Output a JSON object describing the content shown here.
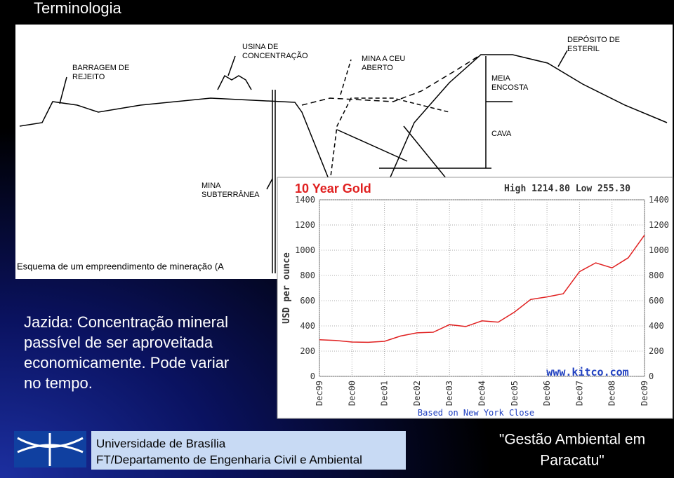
{
  "title": "Terminologia",
  "diagram": {
    "labels": [
      [
        "BARRAGEM DE",
        "REJEITO"
      ],
      [
        "USINA DE",
        "CONCENTRAÇÃO"
      ],
      [
        "MINA A CEU",
        "ABERTO"
      ],
      [
        "DEPÓSITO DE",
        "ESTERIL"
      ],
      [
        "MEIA",
        "ENCOSTA"
      ],
      [
        "CAVA"
      ],
      [
        "MINA",
        "SUBTERRÂNEA"
      ]
    ],
    "caption": "Esquema de um empreendimento de mineração (A"
  },
  "body": [
    "Jazida: Concentração mineral",
    "passível de ser aproveitada",
    "economicamente. Pode variar",
    "no tempo."
  ],
  "chart_data": {
    "type": "line",
    "title": "10 Year Gold",
    "subtitle": "High 1214.80 Low 255.30",
    "y_label": "USD per ounce",
    "x_label": "Based on New York Close",
    "source": "www.kitco.com",
    "categories": [
      "Dec99",
      null,
      "Dec00",
      null,
      "Dec01",
      null,
      "Dec02",
      null,
      "Dec03",
      null,
      "Dec04",
      null,
      "Dec05",
      null,
      "Dec06",
      null,
      "Dec07",
      null,
      "Dec08",
      null,
      "Dec09"
    ],
    "values": [
      290,
      285,
      272,
      270,
      278,
      320,
      345,
      350,
      410,
      395,
      440,
      430,
      510,
      610,
      630,
      655,
      830,
      900,
      860,
      940,
      1120
    ],
    "color": "#e02020",
    "ylim": [
      0,
      1400
    ],
    "yticks": [
      0,
      200,
      400,
      600,
      800,
      1000,
      1200,
      1400
    ],
    "grid": true
  },
  "footer": {
    "institution": "Universidade de Brasília",
    "department": "FT/Departamento de Engenharia Civil e Ambiental",
    "project": [
      "\"Gestão Ambiental em",
      "Paracatu\""
    ]
  }
}
